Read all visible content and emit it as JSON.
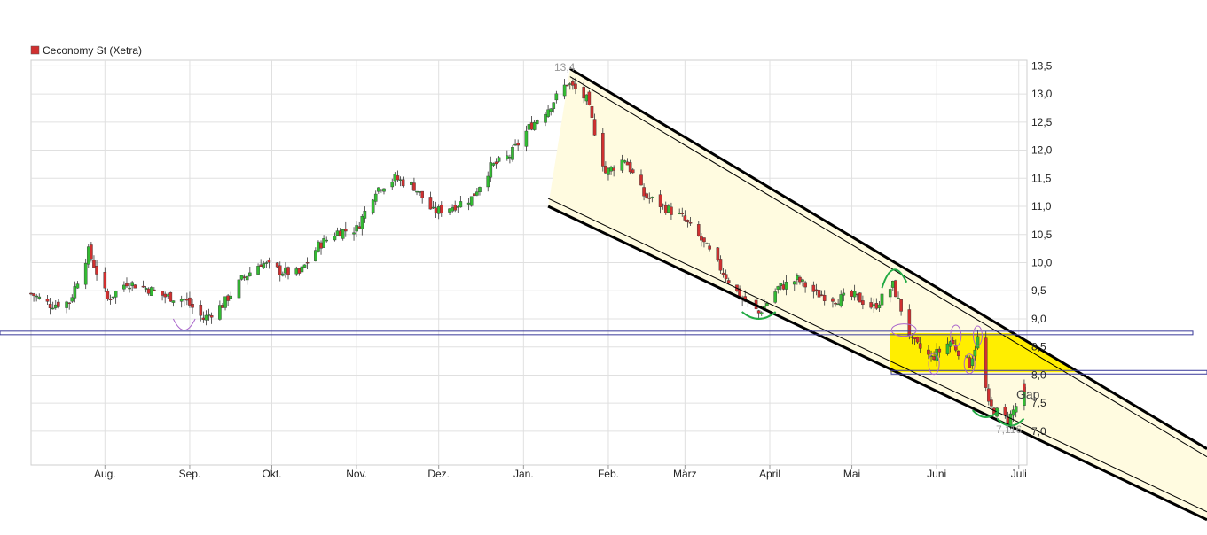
{
  "legend": {
    "label": "Ceconomy St (Xetra)",
    "color": "#d03030"
  },
  "colors": {
    "up": "#33bb33",
    "down": "#d03030",
    "channel": "#000000",
    "channel_fill": "#fffbe0",
    "zone": "#ffee00",
    "support_line": "#3a3a9a",
    "annotation_green": "#22aa44",
    "annotation_purple": "#aa66cc",
    "grid": "#e0e0e0"
  },
  "annotations": {
    "high_label": "13,4",
    "low_label": "7,116",
    "gap_label": "Gap"
  },
  "chart_data": {
    "type": "candlestick",
    "title": "",
    "series_name": "Ceconomy St (Xetra)",
    "x_axis": {
      "labels": [
        "Aug.",
        "Sep.",
        "Okt.",
        "Nov.",
        "Dez.",
        "Jan.",
        "Feb.",
        "März",
        "April",
        "Mai",
        "Juni",
        "Juli"
      ],
      "start": "2022-07-05",
      "end": "2023-07-04"
    },
    "y_axis": {
      "ticks": [
        "7,0",
        "7,5",
        "8,0",
        "8,5",
        "9,0",
        "9,5",
        "10,0",
        "10,5",
        "11,0",
        "11,5",
        "12,0",
        "12,5",
        "13,0",
        "13,5"
      ],
      "range": [
        6.4,
        13.6
      ],
      "position": "right"
    },
    "grid": true,
    "legend_position": "top-left",
    "close_path": [
      [
        "2022-07-05",
        9.45
      ],
      [
        "2022-07-12",
        9.25
      ],
      [
        "2022-07-19",
        9.3
      ],
      [
        "2022-07-26",
        10.2
      ],
      [
        "2022-08-02",
        9.35
      ],
      [
        "2022-08-09",
        9.65
      ],
      [
        "2022-08-16",
        9.55
      ],
      [
        "2022-08-23",
        9.4
      ],
      [
        "2022-08-30",
        9.35
      ],
      [
        "2022-09-06",
        9.0
      ],
      [
        "2022-09-13",
        9.25
      ],
      [
        "2022-09-20",
        9.7
      ],
      [
        "2022-09-27",
        10.0
      ],
      [
        "2022-10-04",
        9.85
      ],
      [
        "2022-10-11",
        9.8
      ],
      [
        "2022-10-18",
        10.3
      ],
      [
        "2022-10-25",
        10.55
      ],
      [
        "2022-11-01",
        10.6
      ],
      [
        "2022-11-08",
        11.3
      ],
      [
        "2022-11-15",
        11.5
      ],
      [
        "2022-11-22",
        11.35
      ],
      [
        "2022-11-29",
        10.9
      ],
      [
        "2022-12-06",
        11.0
      ],
      [
        "2022-12-13",
        11.15
      ],
      [
        "2022-12-20",
        11.7
      ],
      [
        "2022-12-27",
        11.9
      ],
      [
        "2023-01-03",
        12.4
      ],
      [
        "2023-01-10",
        12.75
      ],
      [
        "2023-01-17",
        13.2
      ],
      [
        "2023-01-24",
        12.9
      ],
      [
        "2023-01-31",
        11.6
      ],
      [
        "2023-02-07",
        11.85
      ],
      [
        "2023-02-14",
        11.2
      ],
      [
        "2023-02-21",
        11.0
      ],
      [
        "2023-02-28",
        10.8
      ],
      [
        "2023-03-07",
        10.4
      ],
      [
        "2023-03-14",
        9.9
      ],
      [
        "2023-03-21",
        9.4
      ],
      [
        "2023-03-28",
        9.1
      ],
      [
        "2023-04-04",
        9.55
      ],
      [
        "2023-04-11",
        9.7
      ],
      [
        "2023-04-18",
        9.45
      ],
      [
        "2023-04-25",
        9.35
      ],
      [
        "2023-05-02",
        9.4
      ],
      [
        "2023-05-09",
        9.2
      ],
      [
        "2023-05-16",
        9.6
      ],
      [
        "2023-05-23",
        8.6
      ],
      [
        "2023-05-30",
        8.3
      ],
      [
        "2023-06-06",
        8.6
      ],
      [
        "2023-06-13",
        8.2
      ],
      [
        "2023-06-16",
        8.65
      ],
      [
        "2023-06-20",
        7.45
      ],
      [
        "2023-06-27",
        7.2
      ],
      [
        "2023-07-03",
        7.7
      ]
    ],
    "high": {
      "value": 13.4,
      "date": "2023-01-18"
    },
    "low": {
      "value": 7.116,
      "date": "2023-06-29"
    },
    "horizontal_lines": [
      8.75,
      8.05
    ],
    "highlight_zone": {
      "y_range": [
        8.05,
        8.75
      ],
      "x_start": "2023-05-15"
    },
    "channel": {
      "upper": [
        [
          "2023-01-18",
          13.45
        ],
        [
          "2023-07-04",
          8.6
        ]
      ],
      "lower": [
        [
          "2023-01-10",
          11.0
        ],
        [
          "2023-07-04",
          6.95
        ]
      ]
    }
  }
}
